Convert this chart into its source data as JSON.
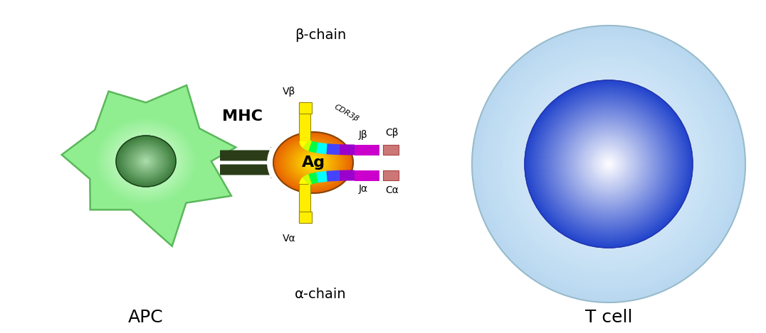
{
  "fig_width": 10.76,
  "fig_height": 4.69,
  "bg_color": "#ffffff",
  "apc_label": "APC",
  "tcell_label": "T cell",
  "mhc_label": "MHC",
  "ag_label": "Ag",
  "beta_chain_label": "β-chain",
  "alpha_chain_label": "α-chain",
  "vbeta_label": "Vβ",
  "valpha_label": "Vα",
  "cdr3beta_label": "CDR3β",
  "jbeta_label": "Jβ",
  "jalpha_label": "Jα",
  "cbeta_label": "Cβ",
  "calpha_label": "Cα",
  "apc_fill_outer": "#90ee90",
  "apc_fill_inner": "#e8ffe8",
  "apc_edge": "#5ab85a",
  "apc_nucleus_dark": "#3a7a3a",
  "apc_nucleus_mid": "#5aaa5a",
  "apc_nucleus_light": "#aaddaa",
  "tcell_outer": "#b8d8f0",
  "tcell_mid": "#80b8e8",
  "tcell_bg": "#d8eef8",
  "tcell_edge": "#7aaabb",
  "nucleus_dark": "#2244cc",
  "nucleus_mid": "#4488ee",
  "nucleus_light": "#ffffff",
  "mhc_dark": "#2a3d18",
  "ag_dark": "#e86000",
  "ag_light": "#ffee00",
  "v_yellow": "#ffee00",
  "v_edge": "#998800",
  "magenta": "#cc00cc",
  "c_salmon": "#cc7777",
  "c_edge": "#aa4444",
  "rainbow": [
    "#ffff00",
    "#ccff00",
    "#00ff44",
    "#00ffff",
    "#4444ff",
    "#9900cc"
  ],
  "label_fontsize": 18,
  "small_fontsize": 10,
  "cdr3_fontsize": 8
}
